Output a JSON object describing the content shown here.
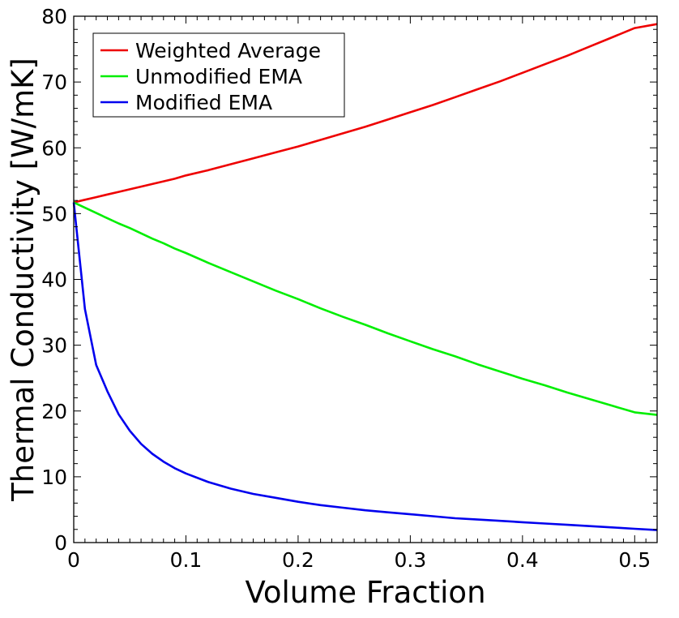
{
  "chart_data": {
    "type": "line",
    "xlabel": "Volume Fraction",
    "ylabel": "Thermal Conductivity [W/mK]",
    "xlim": [
      0,
      0.52
    ],
    "ylim": [
      0,
      80
    ],
    "xticks": [
      0,
      0.1,
      0.2,
      0.3,
      0.4,
      0.5
    ],
    "xtick_labels": [
      "0",
      "0.1",
      "0.2",
      "0.3",
      "0.4",
      "0.5"
    ],
    "yticks": [
      0,
      10,
      20,
      30,
      40,
      50,
      60,
      70,
      80
    ],
    "ytick_labels": [
      "0",
      "10",
      "20",
      "30",
      "40",
      "50",
      "60",
      "70",
      "80"
    ],
    "grid": false,
    "legend_position": "top-left",
    "x": [
      0,
      0.01,
      0.02,
      0.03,
      0.04,
      0.05,
      0.06,
      0.07,
      0.08,
      0.09,
      0.1,
      0.12,
      0.14,
      0.16,
      0.18,
      0.2,
      0.22,
      0.24,
      0.26,
      0.28,
      0.3,
      0.32,
      0.34,
      0.36,
      0.38,
      0.4,
      0.42,
      0.44,
      0.46,
      0.48,
      0.5,
      0.52
    ],
    "series": [
      {
        "name": "Weighted Average",
        "color": "#ee0000",
        "values": [
          51.7,
          52.1,
          52.5,
          52.9,
          53.3,
          53.7,
          54.1,
          54.5,
          54.9,
          55.3,
          55.8,
          56.6,
          57.5,
          58.4,
          59.3,
          60.2,
          61.2,
          62.2,
          63.2,
          64.3,
          65.4,
          66.5,
          67.7,
          68.9,
          70.1,
          71.4,
          72.7,
          74.0,
          75.4,
          76.8,
          78.2,
          78.8
        ]
      },
      {
        "name": "Unmodified EMA",
        "color": "#00ee00",
        "values": [
          51.7,
          50.9,
          50.1,
          49.3,
          48.5,
          47.8,
          47.0,
          46.2,
          45.5,
          44.7,
          44.0,
          42.5,
          41.1,
          39.7,
          38.3,
          37.0,
          35.6,
          34.3,
          33.1,
          31.8,
          30.6,
          29.4,
          28.3,
          27.1,
          26.0,
          24.9,
          23.9,
          22.8,
          21.8,
          20.8,
          19.8,
          19.4
        ]
      },
      {
        "name": "Modified EMA",
        "color": "#0000ee",
        "values": [
          51.7,
          35.5,
          27.0,
          23.0,
          19.5,
          17.0,
          15.0,
          13.5,
          12.3,
          11.3,
          10.5,
          9.2,
          8.2,
          7.4,
          6.8,
          6.2,
          5.7,
          5.3,
          4.9,
          4.6,
          4.3,
          4.0,
          3.7,
          3.5,
          3.3,
          3.1,
          2.9,
          2.7,
          2.5,
          2.3,
          2.1,
          1.9
        ]
      }
    ]
  }
}
